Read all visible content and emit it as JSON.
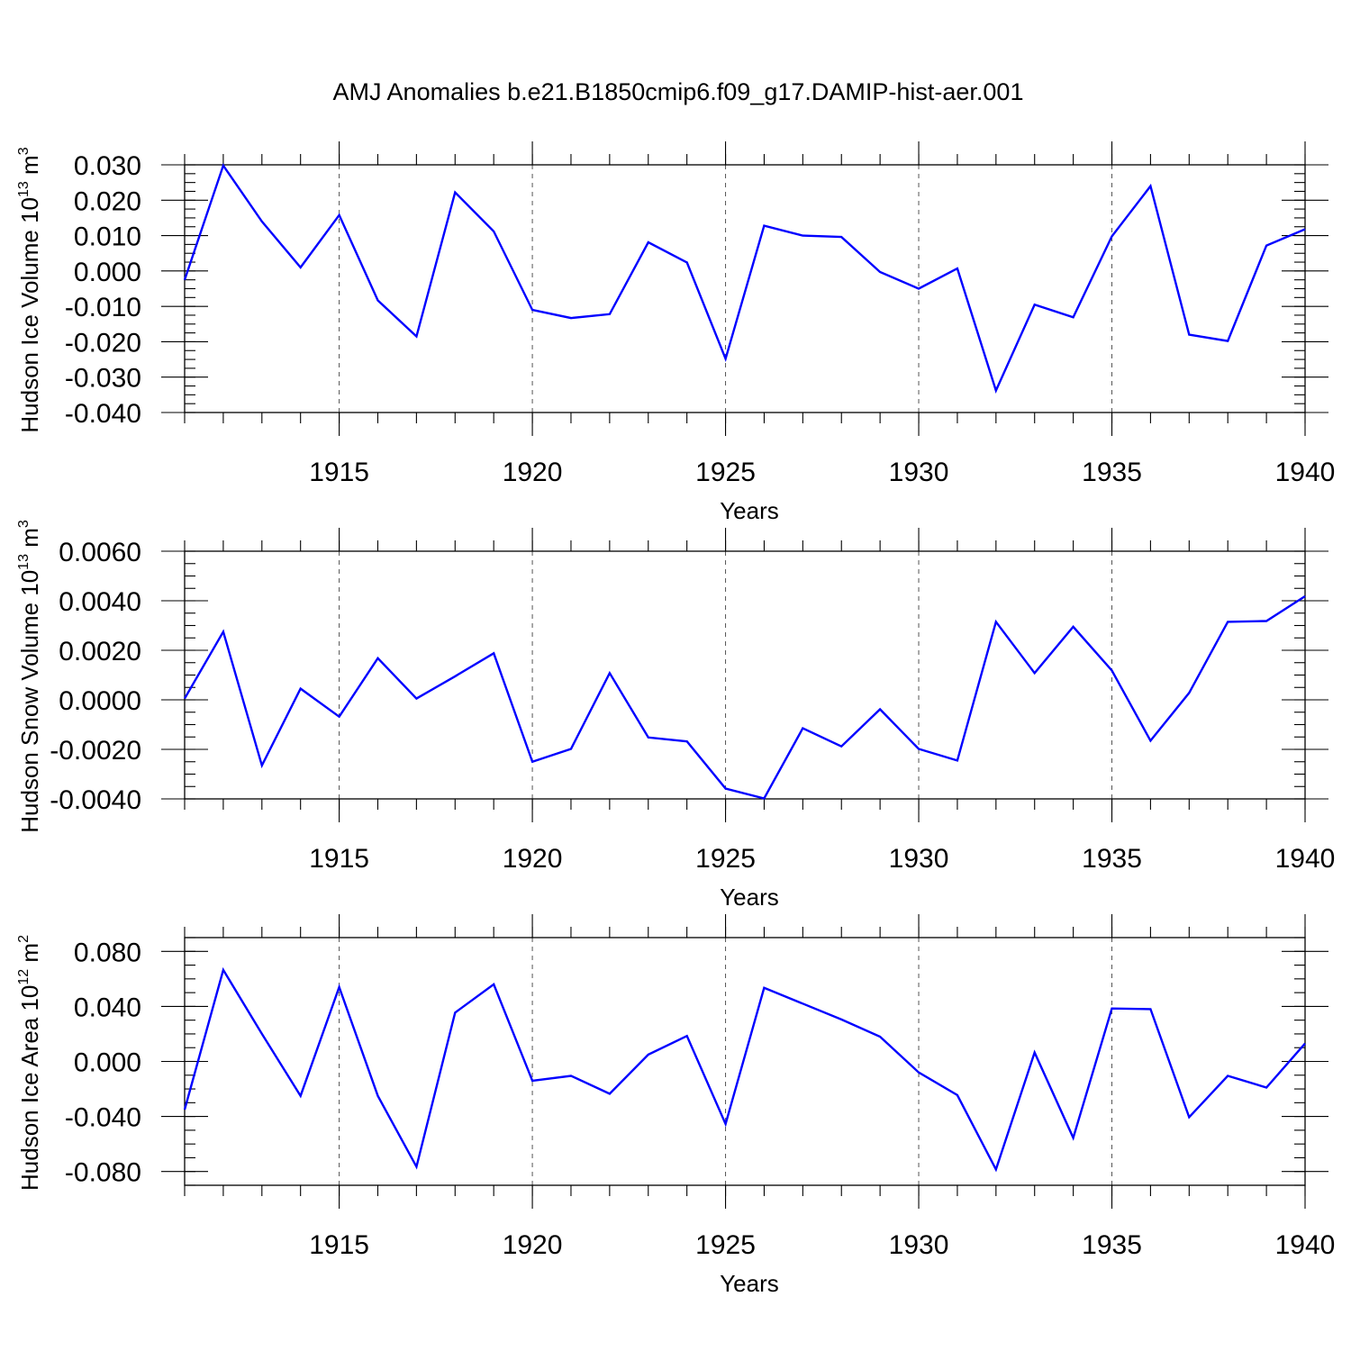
{
  "figure": {
    "title": "AMJ Anomalies b.e21.B1850cmip6.f09_g17.DAMIP-hist-aer.001",
    "line_color": "#0000ff"
  },
  "chart_data": [
    {
      "type": "line",
      "title": "AMJ Anomalies b.e21.B1850cmip6.f09_g17.DAMIP-hist-aer.001",
      "xlabel": "Years",
      "ylabel": "Hudson Ice Volume 10",
      "ylabel_exp": "13",
      "ylabel_unit": " m",
      "ylabel_unit_exp": "3",
      "xlim": [
        1911,
        1940
      ],
      "ylim": [
        -0.04,
        0.03
      ],
      "grid": true,
      "ytick_values": [
        -0.04,
        -0.03,
        -0.02,
        -0.01,
        0.0,
        0.01,
        0.02,
        0.03
      ],
      "ytick_labels": [
        "-0.040",
        "-0.030",
        "-0.020",
        "-0.010",
        "0.000",
        "0.010",
        "0.020",
        "0.030"
      ],
      "xtick_values": [
        1915,
        1920,
        1925,
        1930,
        1935,
        1940
      ],
      "xtick_labels": [
        "1915",
        "1920",
        "1925",
        "1930",
        "1935",
        "1940"
      ],
      "x": [
        1911,
        1912,
        1913,
        1914,
        1915,
        1916,
        1917,
        1918,
        1919,
        1920,
        1921,
        1922,
        1923,
        1924,
        1925,
        1926,
        1927,
        1928,
        1929,
        1930,
        1931,
        1932,
        1933,
        1934,
        1935,
        1936,
        1937,
        1938,
        1939,
        1940
      ],
      "series": [
        {
          "name": "Hudson Ice Volume",
          "values": [
            -0.0025,
            0.0298,
            0.014,
            0.001,
            0.0158,
            -0.0083,
            -0.0185,
            0.0222,
            0.0112,
            -0.011,
            -0.0133,
            -0.0122,
            0.0081,
            0.0024,
            -0.0248,
            0.0128,
            0.01,
            0.0096,
            -0.0003,
            -0.005,
            0.0007,
            -0.0338,
            -0.0095,
            -0.0131,
            0.0098,
            0.024,
            -0.018,
            -0.0198,
            0.0072,
            0.0118
          ]
        }
      ]
    },
    {
      "type": "line",
      "xlabel": "Years",
      "ylabel": "Hudson Snow Volume 10",
      "ylabel_exp": "13",
      "ylabel_unit": " m",
      "ylabel_unit_exp": "3",
      "xlim": [
        1911,
        1940
      ],
      "ylim": [
        -0.004,
        0.006
      ],
      "grid": true,
      "ytick_values": [
        -0.004,
        -0.002,
        0.0,
        0.002,
        0.004,
        0.006
      ],
      "ytick_labels": [
        "-0.0040",
        "-0.0020",
        "0.0000",
        "0.0020",
        "0.0040",
        "0.0060"
      ],
      "xtick_values": [
        1915,
        1920,
        1925,
        1930,
        1935,
        1940
      ],
      "xtick_labels": [
        "1915",
        "1920",
        "1925",
        "1930",
        "1935",
        "1940"
      ],
      "x": [
        1911,
        1912,
        1913,
        1914,
        1915,
        1916,
        1917,
        1918,
        1919,
        1920,
        1921,
        1922,
        1923,
        1924,
        1925,
        1926,
        1927,
        1928,
        1929,
        1930,
        1931,
        1932,
        1933,
        1934,
        1935,
        1936,
        1937,
        1938,
        1939,
        1940
      ],
      "series": [
        {
          "name": "Hudson Snow Volume",
          "values": [
            5e-05,
            0.00275,
            -0.00265,
            0.00045,
            -0.00068,
            0.00168,
            5e-05,
            0.00095,
            0.00188,
            -0.0025,
            -0.00198,
            0.00108,
            -0.00152,
            -0.00168,
            -0.00358,
            -0.00398,
            -0.00115,
            -0.00188,
            -0.00038,
            -0.00198,
            -0.00245,
            0.00315,
            0.00108,
            0.00295,
            0.00118,
            -0.00165,
            0.00028,
            0.00315,
            0.00318,
            0.00418
          ]
        }
      ]
    },
    {
      "type": "line",
      "xlabel": "Years",
      "ylabel": "Hudson Ice Area 10",
      "ylabel_exp": "12",
      "ylabel_unit": " m",
      "ylabel_unit_exp": "2",
      "xlim": [
        1911,
        1940
      ],
      "ylim": [
        -0.09,
        0.09
      ],
      "grid": true,
      "ytick_values": [
        -0.08,
        -0.04,
        0.0,
        0.04,
        0.08
      ],
      "ytick_labels": [
        "-0.080",
        "-0.040",
        "0.000",
        "0.040",
        "0.080"
      ],
      "xtick_values": [
        1915,
        1920,
        1925,
        1930,
        1935,
        1940
      ],
      "xtick_labels": [
        "1915",
        "1920",
        "1925",
        "1930",
        "1935",
        "1940"
      ],
      "x": [
        1911,
        1912,
        1913,
        1914,
        1915,
        1916,
        1917,
        1918,
        1919,
        1920,
        1921,
        1922,
        1923,
        1924,
        1925,
        1926,
        1927,
        1928,
        1929,
        1930,
        1931,
        1932,
        1933,
        1934,
        1935,
        1936,
        1937,
        1938,
        1939,
        1940
      ],
      "series": [
        {
          "name": "Hudson Ice Area",
          "values": [
            -0.035,
            0.0665,
            0.02,
            -0.025,
            0.054,
            -0.025,
            -0.0765,
            0.0355,
            0.056,
            -0.014,
            -0.0105,
            -0.0235,
            0.005,
            0.0185,
            -0.0455,
            0.0535,
            0.042,
            0.0305,
            0.018,
            -0.008,
            -0.0245,
            -0.0785,
            0.0065,
            -0.0555,
            0.0385,
            0.038,
            -0.0405,
            -0.0105,
            -0.019,
            0.013
          ]
        }
      ]
    }
  ]
}
